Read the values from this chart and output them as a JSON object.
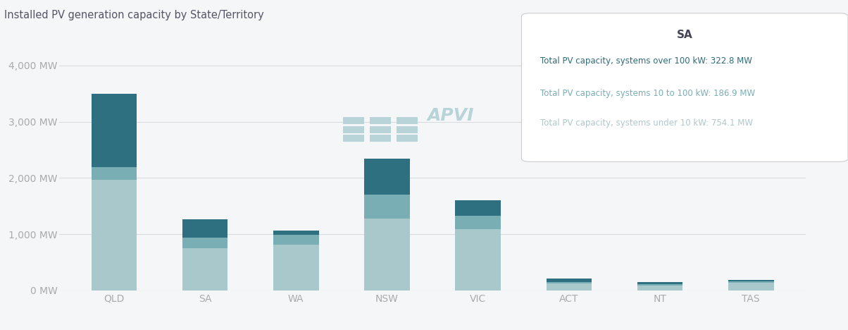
{
  "title": "Installed PV generation capacity by State/Territory",
  "states": [
    "QLD",
    "SA",
    "WA",
    "NSW",
    "VIC",
    "ACT",
    "NT",
    "TAS"
  ],
  "under_10kw": [
    1960,
    754.1,
    810,
    1280,
    1090,
    120,
    90,
    140
  ],
  "mid_10_100kw": [
    230,
    186.9,
    175,
    420,
    240,
    30,
    25,
    20
  ],
  "over_100kw": [
    1310,
    322.8,
    75,
    640,
    270,
    60,
    30,
    30
  ],
  "color_under": "#a8c8cc",
  "color_mid": "#7aaeb5",
  "color_over": "#2e7080",
  "background": "#f4f6f8",
  "grid_color": "#d8dce0",
  "title_color": "#555566",
  "axis_color": "#aaaaaa",
  "yticks": [
    0,
    1000,
    2000,
    3000,
    4000
  ],
  "ytick_labels": [
    "0 MW",
    "1,000 MW",
    "2,000 MW",
    "3,000 MW",
    "4,000 MW"
  ],
  "tooltip_state": "SA",
  "tooltip_over": "Total PV capacity, systems over 100 kW: 322.8 MW",
  "tooltip_mid": "Total PV capacity, systems 10 to 100 kW: 186.9 MW",
  "tooltip_under": "Total PV capacity, systems under 10 kW: 754.1 MW",
  "tooltip_over_color": "#2e6b7a",
  "tooltip_mid_color": "#7aaeb5",
  "tooltip_under_color": "#aec8cc",
  "tooltip_title_color": "#444455",
  "apvi_color": "#b8d4d8"
}
